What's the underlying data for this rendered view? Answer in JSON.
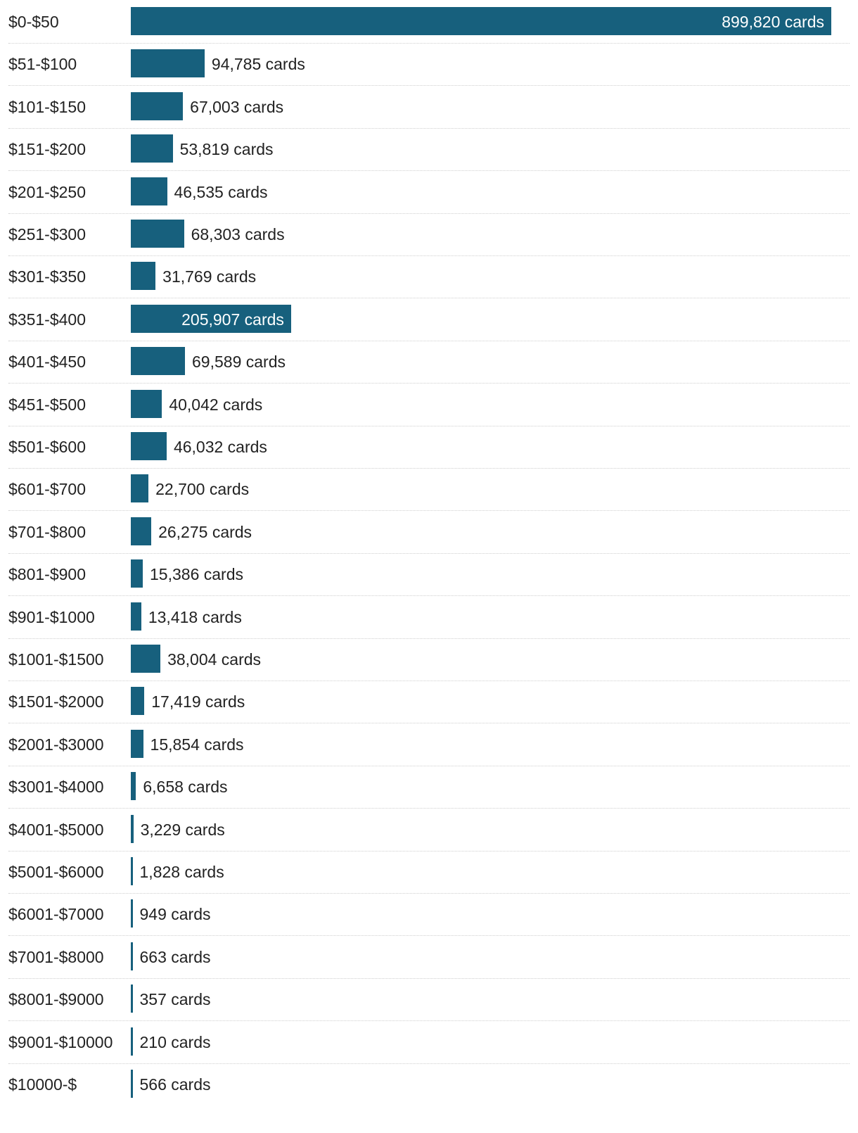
{
  "chart_data": {
    "type": "bar",
    "orientation": "horizontal",
    "bar_color": "#17607d",
    "value_suffix": " cards",
    "categories": [
      "$0-$50",
      "$51-$100",
      "$101-$150",
      "$151-$200",
      "$201-$250",
      "$251-$300",
      "$301-$350",
      "$351-$400",
      "$401-$450",
      "$451-$500",
      "$501-$600",
      "$601-$700",
      "$701-$800",
      "$801-$900",
      "$901-$1000",
      "$1001-$1500",
      "$1501-$2000",
      "$2001-$3000",
      "$3001-$4000",
      "$4001-$5000",
      "$5001-$6000",
      "$6001-$7000",
      "$7001-$8000",
      "$8001-$9000",
      "$9001-$10000",
      "$10000-$"
    ],
    "values": [
      899820,
      94785,
      67003,
      53819,
      46535,
      68303,
      31769,
      205907,
      69589,
      40042,
      46032,
      22700,
      26275,
      15386,
      13418,
      38004,
      17419,
      15854,
      6658,
      3229,
      1828,
      949,
      663,
      357,
      210,
      566
    ],
    "value_labels": [
      "899,820 cards",
      "94,785 cards",
      "67,003 cards",
      "53,819 cards",
      "46,535 cards",
      "68,303 cards",
      "31,769 cards",
      "205,907 cards",
      "69,589 cards",
      "40,042 cards",
      "46,032 cards",
      "22,700 cards",
      "26,275 cards",
      "15,386 cards",
      "13,418 cards",
      "38,004 cards",
      "17,419 cards",
      "15,854 cards",
      "6,658 cards",
      "3,229 cards",
      "1,828 cards",
      "949 cards",
      "663 cards",
      "357 cards",
      "210 cards",
      "566 cards"
    ],
    "xlim": [
      0,
      899820
    ],
    "title": "",
    "xlabel": "",
    "ylabel": ""
  }
}
